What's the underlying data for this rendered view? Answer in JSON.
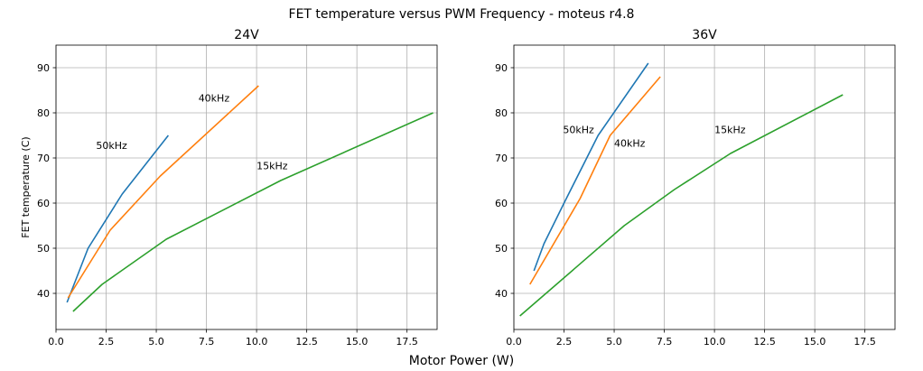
{
  "suptitle": "FET temperature versus PWM Frequency - moteus r4.8",
  "supxlabel": "Motor Power (W)",
  "colors": {
    "50kHz": "#1f77b4",
    "40kHz": "#ff7f0e",
    "15kHz": "#2ca02c",
    "grid": "#b0b0b0"
  },
  "chart_data": [
    {
      "type": "line",
      "title": "24V",
      "xlabel": "",
      "ylabel": "FET temperature (C)",
      "xlim": [
        0,
        19
      ],
      "ylim": [
        32,
        95
      ],
      "grid": true,
      "xticks": [
        0,
        2.5,
        5,
        7.5,
        10,
        12.5,
        15,
        17.5
      ],
      "xtick_labels": [
        "0.0",
        "2.5",
        "5.0",
        "7.5",
        "10.0",
        "12.5",
        "15.0",
        "17.5"
      ],
      "yticks": [
        40,
        50,
        60,
        70,
        80,
        90
      ],
      "ytick_labels": [
        "40",
        "50",
        "60",
        "70",
        "80",
        "90"
      ],
      "series": [
        {
          "name": "50kHz",
          "color": "#1f77b4",
          "x": [
            0.55,
            1.6,
            3.3,
            5.6
          ],
          "y": [
            38,
            50,
            62,
            75
          ]
        },
        {
          "name": "40kHz",
          "color": "#ff7f0e",
          "x": [
            0.6,
            2.7,
            5.2,
            10.1
          ],
          "y": [
            39,
            54,
            66,
            86
          ]
        },
        {
          "name": "15kHz",
          "color": "#2ca02c",
          "x": [
            0.85,
            2.3,
            5.5,
            11.2,
            18.8
          ],
          "y": [
            36,
            42,
            52,
            65,
            80
          ]
        }
      ],
      "annotations": [
        {
          "text": "50kHz",
          "x": 2.0,
          "y": 72
        },
        {
          "text": "40kHz",
          "x": 7.1,
          "y": 82.5
        },
        {
          "text": "15kHz",
          "x": 10.0,
          "y": 67.5
        }
      ]
    },
    {
      "type": "line",
      "title": "36V",
      "xlabel": "",
      "ylabel": "",
      "xlim": [
        0,
        19
      ],
      "ylim": [
        32,
        95
      ],
      "grid": true,
      "xticks": [
        0,
        2.5,
        5,
        7.5,
        10,
        12.5,
        15,
        17.5
      ],
      "xtick_labels": [
        "0.0",
        "2.5",
        "5.0",
        "7.5",
        "10.0",
        "12.5",
        "15.0",
        "17.5"
      ],
      "yticks": [
        40,
        50,
        60,
        70,
        80,
        90
      ],
      "ytick_labels": [
        "40",
        "50",
        "60",
        "70",
        "80",
        "90"
      ],
      "series": [
        {
          "name": "50kHz",
          "color": "#1f77b4",
          "x": [
            1.0,
            1.5,
            2.5,
            4.2,
            6.7
          ],
          "y": [
            45,
            51,
            60,
            75,
            91
          ]
        },
        {
          "name": "40kHz",
          "color": "#ff7f0e",
          "x": [
            0.8,
            3.3,
            4.8,
            7.3
          ],
          "y": [
            42,
            61,
            75,
            88
          ]
        },
        {
          "name": "15kHz",
          "color": "#2ca02c",
          "x": [
            0.3,
            5.5,
            8.0,
            10.8,
            16.4
          ],
          "y": [
            35,
            55,
            63,
            71,
            84
          ]
        }
      ],
      "annotations": [
        {
          "text": "50kHz",
          "x": 2.45,
          "y": 75.5
        },
        {
          "text": "40kHz",
          "x": 5.0,
          "y": 72.5
        },
        {
          "text": "15kHz",
          "x": 10.0,
          "y": 75.5
        }
      ]
    }
  ]
}
